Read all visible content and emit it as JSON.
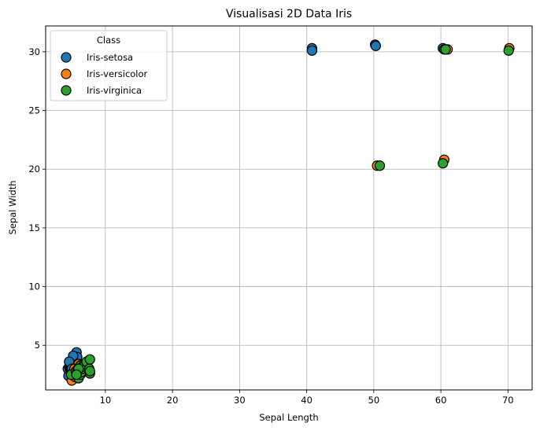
{
  "chart_data": {
    "type": "scatter",
    "title": "Visualisasi 2D Data Iris",
    "xlabel": "Sepal Length",
    "ylabel": "Sepal Width",
    "xlim": [
      1.1,
      73.6
    ],
    "ylim": [
      1.2,
      32.2
    ],
    "xticks": [
      10,
      20,
      30,
      40,
      50,
      60,
      70
    ],
    "yticks": [
      5,
      10,
      15,
      20,
      25,
      30
    ],
    "grid": true,
    "legend": {
      "title": "Class",
      "position": "top-left"
    },
    "series": [
      {
        "name": "Iris-setosa",
        "color": "#1f77b4",
        "points": [
          [
            4.5,
            2.4
          ],
          [
            4.4,
            3.0
          ],
          [
            4.6,
            3.2
          ],
          [
            4.7,
            3.0
          ],
          [
            4.8,
            3.1
          ],
          [
            4.8,
            3.4
          ],
          [
            4.9,
            3.0
          ],
          [
            5.0,
            3.5
          ],
          [
            5.0,
            3.3
          ],
          [
            5.1,
            3.8
          ],
          [
            5.1,
            3.5
          ],
          [
            5.2,
            3.4
          ],
          [
            5.3,
            3.7
          ],
          [
            5.4,
            3.9
          ],
          [
            5.4,
            3.4
          ],
          [
            5.5,
            4.2
          ],
          [
            5.7,
            4.4
          ],
          [
            5.7,
            3.8
          ],
          [
            5.8,
            4.0
          ],
          [
            5.2,
            4.1
          ],
          [
            4.6,
            3.6
          ],
          [
            5.0,
            3.0
          ],
          [
            5.1,
            2.6
          ],
          [
            40.8,
            30.3
          ],
          [
            40.8,
            30.1
          ],
          [
            50.2,
            30.6
          ],
          [
            50.3,
            30.5
          ],
          [
            60.3,
            30.3
          ],
          [
            60.5,
            30.2
          ]
        ]
      },
      {
        "name": "Iris-versicolor",
        "color": "#ff7f0e",
        "points": [
          [
            5.0,
            2.0
          ],
          [
            5.2,
            2.7
          ],
          [
            5.5,
            2.3
          ],
          [
            5.6,
            2.9
          ],
          [
            5.7,
            2.8
          ],
          [
            5.8,
            2.7
          ],
          [
            6.0,
            2.2
          ],
          [
            6.1,
            2.8
          ],
          [
            6.2,
            2.9
          ],
          [
            6.3,
            3.3
          ],
          [
            6.4,
            3.2
          ],
          [
            6.6,
            3.0
          ],
          [
            6.7,
            3.1
          ],
          [
            6.9,
            3.1
          ],
          [
            7.0,
            3.2
          ],
          [
            5.9,
            3.2
          ],
          [
            6.0,
            3.4
          ],
          [
            5.4,
            3.0
          ],
          [
            50.5,
            20.3
          ],
          [
            60.5,
            20.8
          ],
          [
            61.0,
            30.2
          ],
          [
            70.2,
            30.3
          ]
        ]
      },
      {
        "name": "Iris-virginica",
        "color": "#2ca02c",
        "points": [
          [
            4.9,
            2.5
          ],
          [
            5.6,
            2.8
          ],
          [
            5.8,
            2.7
          ],
          [
            5.9,
            3.0
          ],
          [
            6.0,
            2.2
          ],
          [
            6.1,
            2.6
          ],
          [
            6.2,
            2.8
          ],
          [
            6.3,
            2.5
          ],
          [
            6.3,
            3.3
          ],
          [
            6.4,
            2.7
          ],
          [
            6.5,
            3.0
          ],
          [
            6.7,
            3.3
          ],
          [
            6.8,
            3.2
          ],
          [
            7.2,
            3.6
          ],
          [
            7.6,
            3.0
          ],
          [
            7.7,
            2.6
          ],
          [
            7.7,
            2.8
          ],
          [
            7.7,
            3.8
          ],
          [
            6.0,
            3.0
          ],
          [
            5.7,
            2.5
          ],
          [
            50.9,
            20.3
          ],
          [
            60.3,
            20.5
          ],
          [
            60.7,
            30.2
          ],
          [
            70.1,
            30.1
          ]
        ]
      }
    ]
  }
}
